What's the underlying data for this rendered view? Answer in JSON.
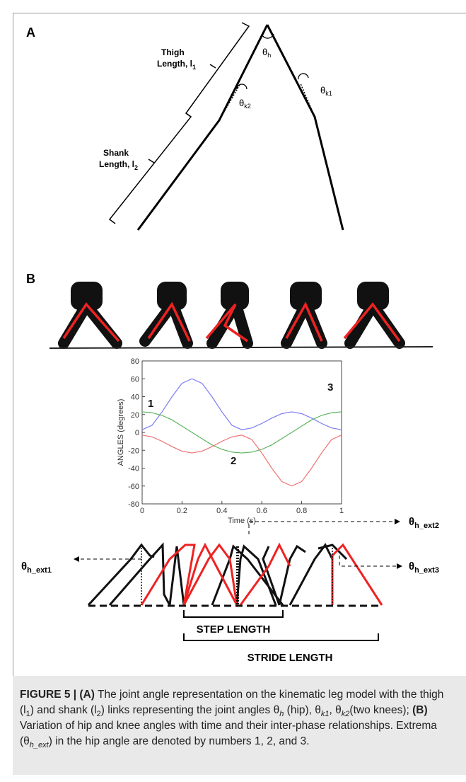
{
  "panel_a": {
    "label": "A",
    "thigh_label": [
      "Thigh",
      "Length, l",
      "1"
    ],
    "shank_label": [
      "Shank",
      "Length, l",
      "2"
    ],
    "theta_h": [
      "θ",
      "h"
    ],
    "theta_k1": [
      "θ",
      "k1"
    ],
    "theta_k2": [
      "θ",
      "k2"
    ]
  },
  "panel_b": {
    "label": "B",
    "theta_h_ext1": [
      "θ",
      "h_ext1"
    ],
    "theta_h_ext2": [
      "θ",
      "h_ext2"
    ],
    "theta_h_ext3": [
      "θ",
      "h_ext3"
    ],
    "step_length": "STEP LENGTH",
    "stride_length": "STRIDE LENGTH"
  },
  "chart_data": {
    "type": "line",
    "x_label": "Time (s)",
    "y_label": "ANGLES (degrees)",
    "x": [
      0,
      0.05,
      0.1,
      0.15,
      0.2,
      0.25,
      0.3,
      0.35,
      0.4,
      0.45,
      0.5,
      0.55,
      0.6,
      0.65,
      0.7,
      0.75,
      0.8,
      0.85,
      0.9,
      0.95,
      1
    ],
    "series": [
      {
        "color": "#7b7bf5",
        "values": [
          3,
          8,
          23,
          40,
          55,
          60,
          55,
          40,
          23,
          8,
          3,
          5,
          10,
          16,
          21,
          23,
          21,
          16,
          10,
          5,
          3
        ]
      },
      {
        "color": "#5db35d",
        "values": [
          23,
          22,
          19,
          14,
          7,
          0,
          -7,
          -14,
          -19,
          -22,
          -23,
          -22,
          -19,
          -14,
          -7,
          0,
          7,
          14,
          19,
          22,
          23
        ]
      },
      {
        "color": "#f07272",
        "values": [
          -3,
          -5,
          -10,
          -16,
          -21,
          -23,
          -21,
          -16,
          -10,
          -5,
          -3,
          -8,
          -23,
          -40,
          -55,
          -60,
          -55,
          -40,
          -23,
          -8,
          -3
        ]
      }
    ],
    "annotations": [
      "1",
      "2",
      "3"
    ],
    "xlim": [
      0,
      1
    ],
    "xticks": [
      0,
      0.2,
      0.4,
      0.6,
      0.8,
      1
    ],
    "ylim": [
      -80,
      80
    ],
    "yticks": [
      -80,
      -60,
      -40,
      -20,
      0,
      20,
      40,
      60,
      80
    ]
  },
  "caption": [
    "FIGURE 5 | (A)",
    " The joint angle representation on the kinematic leg model with the thigh (l",
    "1",
    ") and shank (l",
    "2",
    ") links representing the joint angles θ",
    "h",
    " (hip), θ",
    "k1",
    ", θ",
    "k2",
    "(two knees); ",
    "(B)",
    " Variation of hip and knee angles with time and their inter-phase relationships. Extrema (θ",
    "h_ext",
    ") in the hip angle are denoted by numbers 1, 2, and 3."
  ]
}
